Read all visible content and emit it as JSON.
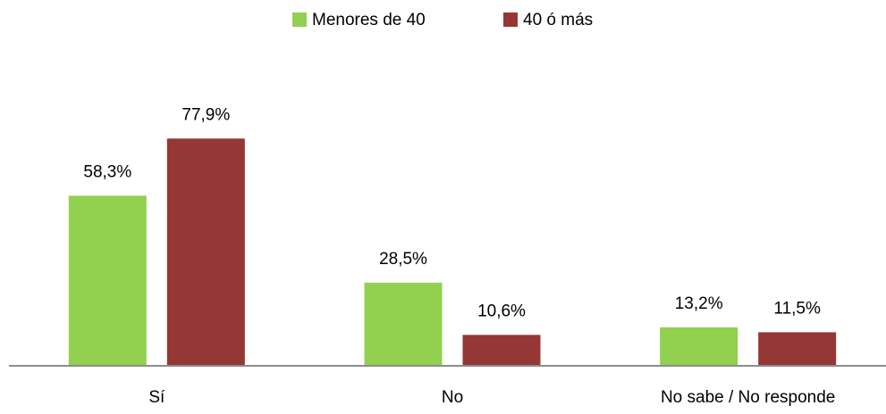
{
  "chart_data": {
    "type": "bar",
    "categories": [
      "Sí",
      "No",
      "No sabe / No responde"
    ],
    "series": [
      {
        "name": "Menores de 40",
        "color": "#92d050",
        "values": [
          58.3,
          28.5,
          13.2
        ],
        "value_labels": [
          "58,3%",
          "28,5%",
          "13,2%"
        ]
      },
      {
        "name": "40 ó más",
        "color": "#953735",
        "values": [
          77.9,
          10.6,
          11.5
        ],
        "value_labels": [
          "77,9%",
          "10,6%",
          "11,5%"
        ]
      }
    ],
    "ylim": [
      0,
      100
    ],
    "legend": "top"
  }
}
